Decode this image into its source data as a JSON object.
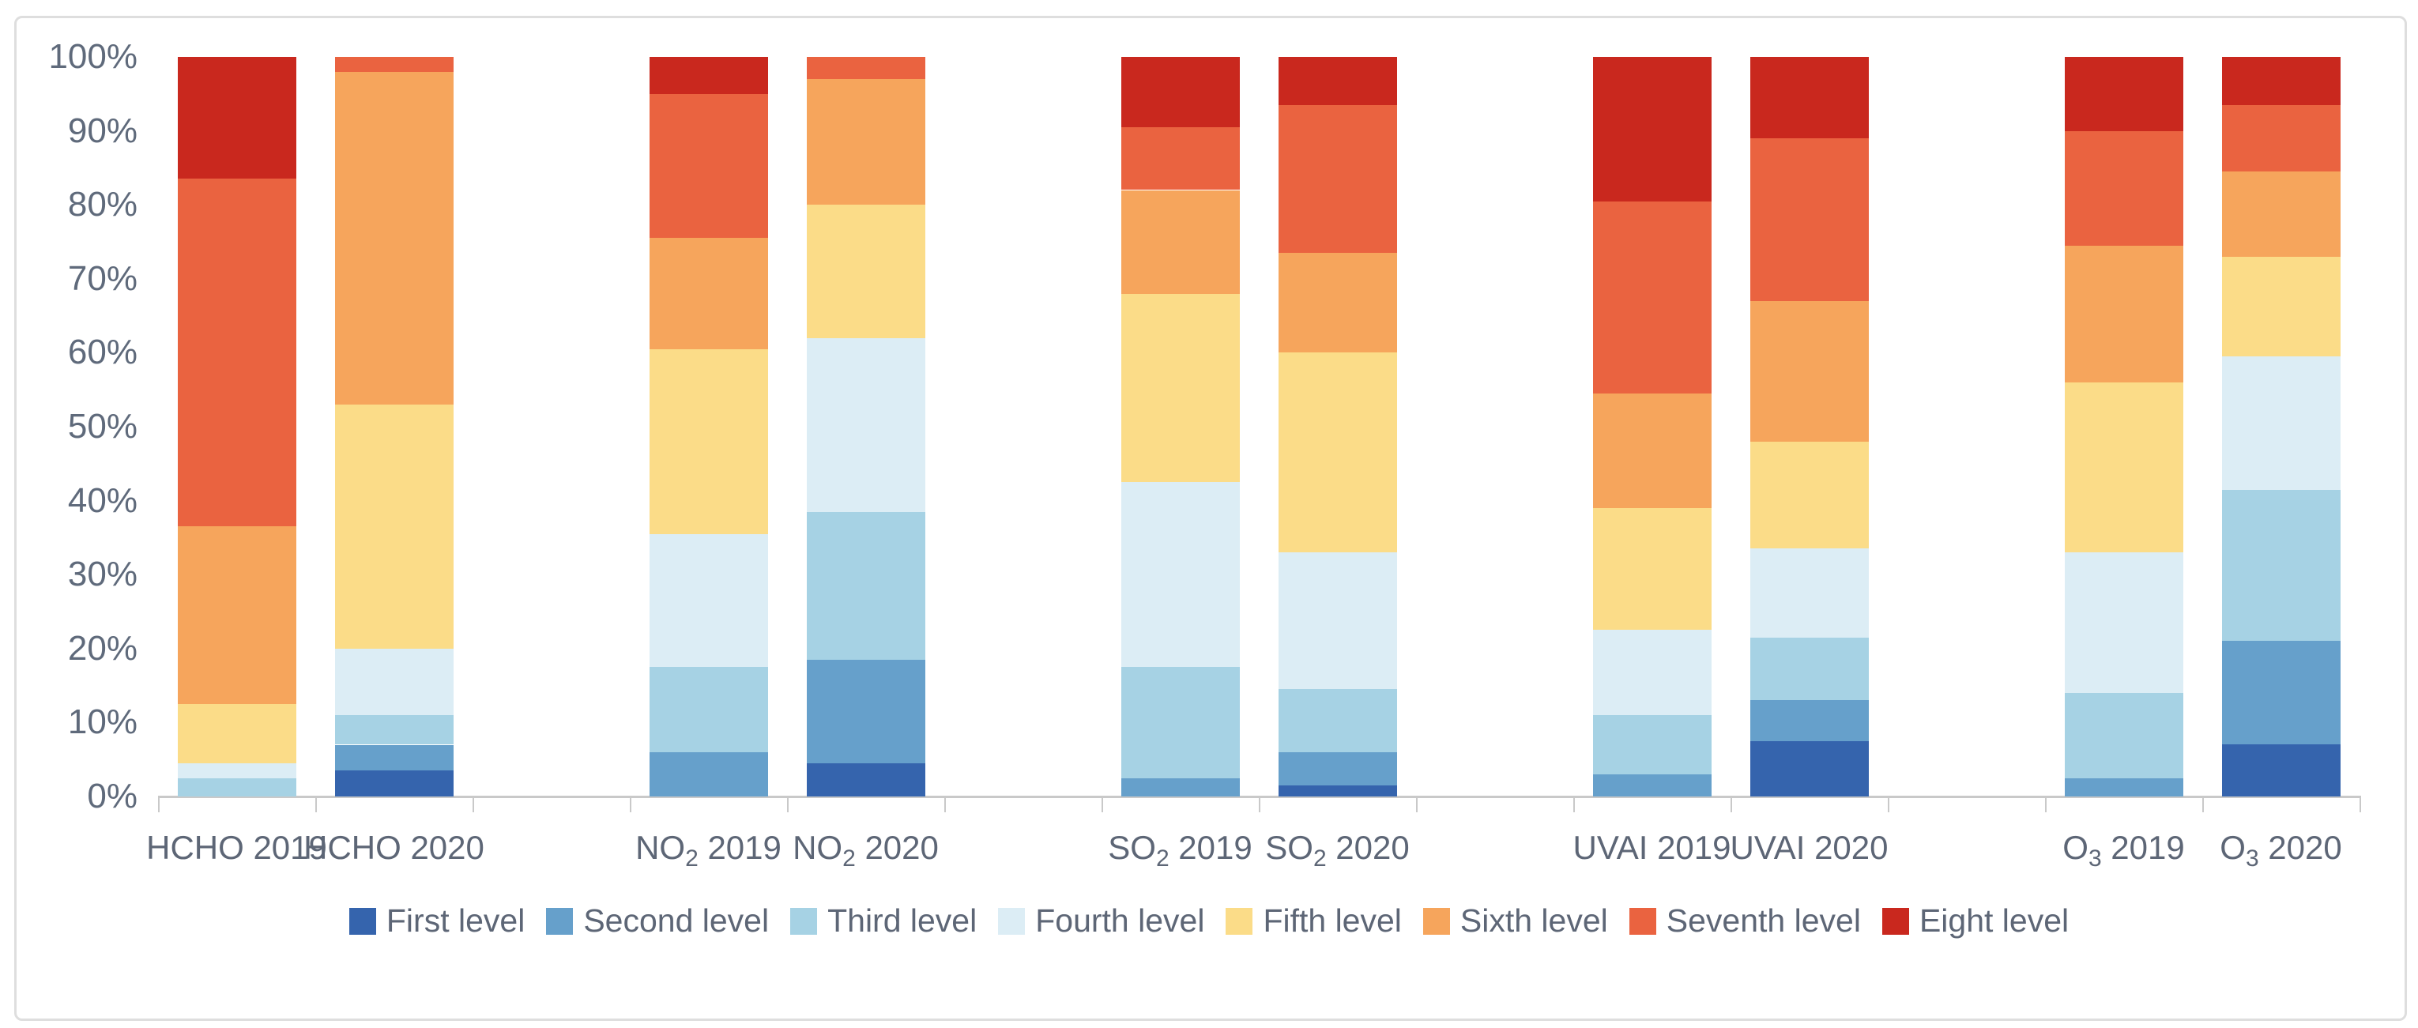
{
  "figure": {
    "background": "#ffffff",
    "frame_border_color": "#dedede",
    "axis_line_color": "#c9c9c9",
    "label_color": "#5d6676"
  },
  "y_axis": {
    "tick_labels": [
      "0%",
      "10%",
      "20%",
      "30%",
      "40%",
      "50%",
      "60%",
      "70%",
      "80%",
      "90%",
      "100%"
    ],
    "min": 0,
    "max": 100,
    "step": 10
  },
  "x_axis": {
    "categories": [
      {
        "formula": "HCHO",
        "sub": "",
        "year": "2019"
      },
      {
        "formula": "HCHO",
        "sub": "",
        "year": "2020"
      },
      {
        "formula": "NO",
        "sub": "2",
        "year": "2019"
      },
      {
        "formula": "NO",
        "sub": "2",
        "year": "2020"
      },
      {
        "formula": "SO",
        "sub": "2",
        "year": "2019"
      },
      {
        "formula": "SO",
        "sub": "2",
        "year": "2020"
      },
      {
        "formula": "UVAI",
        "sub": "",
        "year": "2019"
      },
      {
        "formula": "UVAI",
        "sub": "",
        "year": "2020"
      },
      {
        "formula": "O",
        "sub": "3",
        "year": "2019"
      },
      {
        "formula": "O",
        "sub": "3",
        "year": "2020"
      }
    ]
  },
  "legend": {
    "position": "bottom",
    "items": [
      {
        "label": "First level",
        "color": "#3564AD"
      },
      {
        "label": "Second level",
        "color": "#66A0CB"
      },
      {
        "label": "Third level",
        "color": "#A6D2E4"
      },
      {
        "label": "Fourth level",
        "color": "#DCEDF5"
      },
      {
        "label": "Fifth level",
        "color": "#FBDC88"
      },
      {
        "label": "Sixth level",
        "color": "#F6A55C"
      },
      {
        "label": "Seventh level",
        "color": "#EA6340"
      },
      {
        "label": "Eight level",
        "color": "#C9281E"
      }
    ]
  },
  "chart_data": {
    "type": "bar",
    "stacked": true,
    "percent_stacked": true,
    "grid": false,
    "legend_position": "bottom",
    "ylim": [
      0,
      100
    ],
    "ylabel": "",
    "xlabel": "",
    "title": "",
    "categories": [
      "HCHO 2019",
      "HCHO 2020",
      "NO2 2019",
      "NO2 2020",
      "SO2 2019",
      "SO2 2020",
      "UVAI 2019",
      "UVAI 2020",
      "O3 2019",
      "O3 2020"
    ],
    "series": [
      {
        "name": "First level",
        "color": "#3564AD",
        "values": [
          0,
          3.5,
          0,
          4.5,
          0,
          1.5,
          0,
          7.5,
          0,
          7
        ]
      },
      {
        "name": "Second level",
        "color": "#66A0CB",
        "values": [
          0,
          3.5,
          6,
          14,
          2.5,
          4.5,
          3,
          5.5,
          2.5,
          14
        ]
      },
      {
        "name": "Third level",
        "color": "#A6D2E4",
        "values": [
          2.5,
          4,
          11.5,
          20,
          15,
          8.5,
          8,
          8.5,
          11.5,
          20.5
        ]
      },
      {
        "name": "Fourth level",
        "color": "#DCEDF5",
        "values": [
          2,
          9,
          18,
          23.5,
          25,
          18.5,
          11.5,
          12,
          19,
          18
        ]
      },
      {
        "name": "Fifth level",
        "color": "#FBDC88",
        "values": [
          8,
          33,
          25,
          18,
          25.5,
          27,
          16.5,
          14.5,
          23,
          13.5
        ]
      },
      {
        "name": "Sixth level",
        "color": "#F6A55C",
        "values": [
          24,
          45,
          15,
          17,
          14,
          13.5,
          15.5,
          19,
          18.5,
          11.5
        ]
      },
      {
        "name": "Seventh level",
        "color": "#EA6340",
        "values": [
          47,
          2,
          19.5,
          3,
          8.5,
          20,
          26,
          22,
          15.5,
          9
        ]
      },
      {
        "name": "Eight level",
        "color": "#C9281E",
        "values": [
          16.5,
          0,
          5,
          0,
          9.5,
          6.5,
          19.5,
          11,
          10,
          6.5
        ]
      }
    ]
  }
}
